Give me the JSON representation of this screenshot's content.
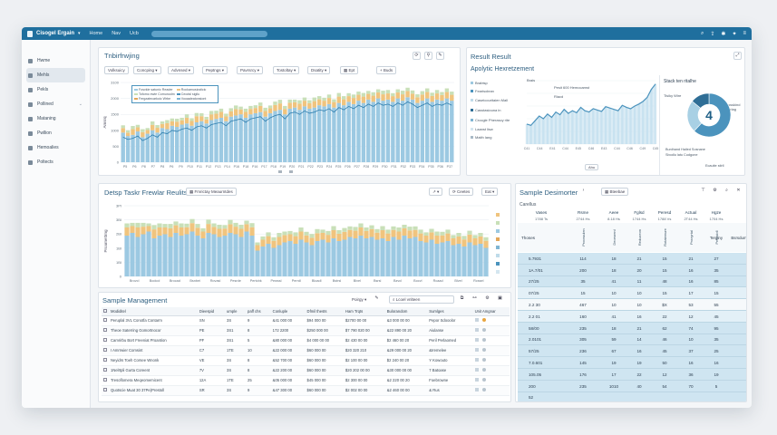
{
  "topbar": {
    "app_title": "Cisogel Ergain",
    "nav": [
      "Home",
      "Nav",
      "Ucb"
    ],
    "right_icons": [
      "search-icon",
      "share-icon",
      "settings-icon",
      "twitter-icon",
      "menu-icon"
    ]
  },
  "sidebar": {
    "items": [
      {
        "label": "Hwme",
        "icon": "home-icon"
      },
      {
        "label": "Mehls",
        "icon": "metrics-icon"
      },
      {
        "label": "Pekls",
        "icon": "pages-icon"
      },
      {
        "label": "Pollined",
        "icon": "pipeline-icon"
      },
      {
        "label": "Mataning",
        "icon": "monitor-icon"
      },
      {
        "label": "Pwllion",
        "icon": "pavilion-icon"
      },
      {
        "label": "Hemoalies",
        "icon": "anomaly-icon"
      },
      {
        "label": "Poltects",
        "icon": "projects-icon"
      }
    ]
  },
  "panel1": {
    "title": "Tnbirfrwjing",
    "toolbar": [
      "Volksuicy",
      "Concping",
      "Advnsed",
      "Peptngs",
      "Pavrsrcy",
      "Tostoltay",
      "Dsatity",
      "Ept",
      "Buds"
    ],
    "legend": [
      "Fosvkle satunic Reader",
      "Rockamusicsticic",
      "Tofomo ewie Comunodm",
      "Ceodsl sigilu",
      "Fergzatecarkoic Wrbe",
      "Vooaaleatonsiont"
    ],
    "ylabel": "Amsrq"
  },
  "panel2": {
    "title": "Result Result",
    "subtitle": "Apolytic Hexretzement",
    "legend": [
      {
        "label": "Brabtsp",
        "color": "#9ec9e0"
      },
      {
        "label": "Fearisolean",
        "color": "#4b93bd"
      },
      {
        "label": "Caseicouritaien Mall",
        "color": "#bfdbe9"
      },
      {
        "label": "Casstasiouna in",
        "color": "#2f6e96"
      },
      {
        "label": "Crocgle Pherascy rite",
        "color": "#7fb5d3"
      },
      {
        "label": "Laanst lisw",
        "color": "#d4e6f0"
      },
      {
        "label": "Maith lang",
        "color": "#a8b9c6"
      }
    ],
    "chart_label_a": "Brais",
    "chart_label_b": "Pesit 600 Hemocamst",
    "chart_label_c": "Riacd",
    "donut_title": "Stack ten ritalhe",
    "donut_value": "4",
    "donut_left": "Tisiky Wire",
    "donut_right": "Cosskind Gerlag",
    "donut_notes": [
      "Bunihand Hailed Sosnane",
      "Sbodlu latu Cudgone",
      "Ecauite stirll"
    ],
    "footer_btn": "Ahu"
  },
  "chart_data": [
    {
      "type": "bar",
      "title": "Tnbirfrwjing",
      "ylabel": "Amsrq",
      "ylim": [
        0,
        3500
      ],
      "yticks": [
        "3100",
        "2000",
        "1500",
        "1000",
        "500",
        "0"
      ],
      "xticks": [
        "P5",
        "P6",
        "P8",
        "P7",
        "P8",
        "P6",
        "P9",
        "P10",
        "P11",
        "P12",
        "P13",
        "P14",
        "P16",
        "P18",
        "P16",
        "P17",
        "P18",
        "P19",
        "P20",
        "P21",
        "P22",
        "P23",
        "P24",
        "P25",
        "P26",
        "P27",
        "P28",
        "P29",
        "P30",
        "P31",
        "P32",
        "P33",
        "P34",
        "P35",
        "P36",
        "P37"
      ],
      "series": [
        {
          "name": "Fosvkle satunic Reader",
          "color": "#9cc9e2",
          "values": [
            1300,
            1150,
            1200,
            1350,
            1100,
            1250,
            1400,
            1300,
            1500,
            1450,
            1600,
            1550,
            1650,
            1700,
            1600,
            1750,
            1800,
            1700,
            1850,
            1900,
            1950,
            1800,
            2000,
            2050,
            2100,
            1950,
            2100,
            2150,
            2200,
            2000,
            2150,
            2250,
            2300,
            2100,
            2350,
            2400,
            2300,
            2450,
            2350,
            2400,
            2500,
            2450,
            2550,
            2400,
            2600,
            2500,
            2650,
            2550,
            2700,
            2600,
            2750,
            2650,
            2800,
            2700,
            2750,
            2650,
            2800,
            2700,
            2850,
            2750,
            2600,
            2700,
            2800,
            2650,
            2750,
            2700,
            2800,
            2700
          ]
        },
        {
          "name": "Rockamusicsticic",
          "color": "#f0c47e",
          "values": [
            200,
            150,
            250,
            180,
            220,
            160,
            240,
            210,
            180,
            260,
            200,
            230,
            190,
            250,
            210,
            270,
            220,
            180,
            250,
            230,
            260,
            210,
            240,
            280,
            220,
            260,
            240,
            230,
            270,
            250,
            220,
            260,
            280,
            240,
            260,
            230,
            270,
            250,
            240,
            280,
            260,
            250,
            270,
            240,
            280,
            260,
            250,
            270,
            260,
            280,
            250,
            270,
            260,
            280,
            270,
            250,
            260,
            280,
            270,
            260,
            250,
            270,
            280,
            260,
            270,
            250,
            280,
            260
          ]
        },
        {
          "name": "Tofomo ewie Comunodm",
          "color": "#c9e0b8",
          "values": [
            120,
            100,
            140,
            110,
            130,
            90,
            150,
            120,
            110,
            140,
            120,
            130,
            110,
            150,
            120,
            140,
            130,
            110,
            150,
            130,
            140,
            120,
            130,
            160,
            120,
            140,
            130,
            120,
            150,
            140,
            120,
            150,
            160,
            130,
            140,
            120,
            150,
            140,
            130,
            160,
            140,
            130,
            150,
            120,
            160,
            140,
            130,
            150,
            140,
            160,
            130,
            150,
            140,
            160,
            150,
            130,
            140,
            160,
            150,
            140,
            130,
            150,
            160,
            140,
            150,
            130,
            160,
            140
          ]
        }
      ],
      "overlay_line": [
        1100,
        1000,
        1050,
        1150,
        950,
        1050,
        1200,
        1100,
        1300,
        1250,
        1400,
        1350,
        1450,
        1500,
        1400,
        1550,
        1600,
        1500,
        1650,
        1700,
        1750,
        1600,
        1800,
        1850,
        1900,
        1750,
        1900,
        1950,
        2000,
        1800,
        1950,
        2050,
        2100,
        1900,
        2150,
        2200,
        2100,
        2250,
        2150,
        2200,
        2300,
        2250,
        2350,
        2200,
        2400,
        2300,
        2450,
        2350,
        2500,
        2400,
        2550,
        2450,
        2600,
        2500,
        2550,
        2450,
        2600,
        2500,
        2650,
        2550,
        2400,
        2500,
        2600,
        2450,
        2550,
        2500,
        2600,
        2500
      ]
    },
    {
      "type": "area",
      "title": "Apolytic Hexretzement",
      "series": [
        {
          "name": "Fearisolean",
          "color": "#4b93bd",
          "values": [
            30,
            28,
            35,
            42,
            38,
            45,
            40,
            48,
            44,
            52,
            46,
            50,
            47,
            55,
            50,
            48,
            53,
            51,
            49,
            56,
            54,
            52,
            50,
            58,
            55,
            53,
            57,
            60,
            64,
            70,
            82,
            90
          ]
        }
      ],
      "xticks": [
        "C41",
        "C44",
        "E41",
        "C44",
        "E45",
        "C46",
        "E43",
        "C44",
        "C46",
        "C49",
        "C45"
      ]
    },
    {
      "type": "pie",
      "title": "Stack ten ritalhe",
      "values": [
        62,
        24,
        14
      ],
      "labels": [
        "Fearisolean",
        "Caseicouritaien Mall",
        "Laanst lisw"
      ],
      "center_value": "4"
    },
    {
      "type": "bar",
      "title": "Detsp Taskr Frewlar Reulits",
      "ylabel": "Proarnettrng",
      "yticks": [
        "3PI",
        "3BI",
        "2BI",
        "1BI",
        "1BI",
        "0"
      ],
      "xticks": [
        "Brovcl",
        "Bodcol",
        "Brocad",
        "Bsnbei",
        "Rovasl",
        "Pesrde",
        "Pertcbk",
        "Pewssl",
        "Perrdl",
        "Bloadl",
        "Bstrsl",
        "Blvel",
        "Bsrsl",
        "Bzvcl",
        "Bocvl",
        "Rcaad",
        "Blvel",
        "Rcssel"
      ],
      "series": [
        {
          "name": "Base",
          "color": "#9cc9e2",
          "values": [
            1500,
            1600,
            1450,
            1550,
            1650,
            1400,
            1500,
            1550,
            1450,
            1600,
            1500,
            1550,
            1650,
            1500,
            1400,
            1600,
            1550,
            1450,
            1500,
            1600,
            1550,
            1450,
            1650,
            1500,
            950,
            1100,
            1200,
            1050,
            1150,
            1250,
            1300,
            1200,
            1350,
            1250,
            1150,
            1300,
            1350,
            1250,
            1400,
            1300,
            1350,
            1450,
            1400,
            1500,
            1400,
            1450,
            1350,
            1400,
            1300,
            1450,
            1350,
            1500,
            1400,
            1450,
            1300,
            1250,
            1350,
            1200,
            1250,
            1300,
            1150,
            1200,
            1100,
            1250,
            1150,
            1200,
            1050
          ]
        },
        {
          "name": "Mid",
          "color": "#f0c47e",
          "values": [
            300,
            250,
            350,
            280,
            200,
            330,
            300,
            250,
            320,
            280,
            300,
            260,
            310,
            290,
            250,
            330,
            270,
            300,
            260,
            320,
            280,
            300,
            270,
            310,
            200,
            250,
            280,
            260,
            300,
            270,
            250,
            280,
            300,
            260,
            270,
            290,
            250,
            280,
            300,
            270,
            290,
            260,
            280,
            300,
            270,
            290,
            260,
            300,
            280,
            260,
            300,
            270,
            290,
            260,
            280,
            250,
            270,
            300,
            260,
            280,
            250,
            270,
            260,
            290,
            250,
            270,
            260
          ]
        },
        {
          "name": "Top",
          "color": "#c9e0b8",
          "values": [
            150,
            120,
            170,
            140,
            100,
            160,
            150,
            130,
            160,
            140,
            150,
            130,
            150,
            140,
            120,
            160,
            130,
            150,
            130,
            160,
            140,
            150,
            130,
            150,
            100,
            120,
            140,
            130,
            150,
            130,
            120,
            140,
            150,
            130,
            140,
            150,
            120,
            140,
            150,
            130,
            140,
            130,
            140,
            150,
            130,
            140,
            130,
            150,
            140,
            130,
            150,
            130,
            140,
            130,
            140,
            120,
            130,
            150,
            130,
            140,
            120,
            130,
            130,
            140,
            120,
            130,
            130
          ]
        }
      ]
    }
  ],
  "panel3": {
    "title": "Detsp Taskr Frewlar Reulits",
    "filter": "Fmrictay Meaurntdes",
    "btn_columns": "Ceetes",
    "btn_export": "Eat",
    "ylabel": "Proarnettrng"
  },
  "panel4": {
    "title": "Sample Management",
    "filter": "Poirgy",
    "search_placeholder": "Lcoel vnlteen",
    "columns": [
      "Modiditel",
      "Dieespid",
      "umple",
      "paff chs",
      "Conluple",
      "Dfmil thests",
      "Ham Trqts",
      "Bulorandom",
      "Sumlges",
      "Unit Amgnar"
    ],
    "rows": [
      [
        "Peruplal 3VL Conotfa Contarm",
        "SN",
        "3S",
        "9",
        "&41 000 00",
        "$94 000 00",
        "$2700 00 00",
        "&3 000 00 00",
        "Pepor Sdooolor",
        ""
      ],
      [
        "Theoe Saterring Gomortnocor",
        "PE",
        "3S1",
        "8",
        "172 2200",
        "$250 000 00",
        "$7 790 020 00",
        "&22 890 00 20",
        "Aiulanse",
        ""
      ],
      [
        "Camrirbu Bort Freeniat Proantion",
        "PF",
        "3S1",
        "5",
        "&80 000 00",
        "$4 000 00 00",
        "$2 430 00 00",
        "$2 460 00 20",
        "Peril Perlaomed",
        ""
      ],
      [
        "I Amrrwier Comsint",
        "C7",
        "1TE",
        "10",
        "&22 000 00",
        "$60 000 00",
        "$20 320 210",
        "&29 000 00 20",
        "&Iremelee",
        ""
      ],
      [
        "Neyidrs Toeh Corsee Wnonk",
        "VE",
        "3S",
        "8",
        "&52 700 00",
        "$60 000 00",
        "$2 100 00 00",
        "$2 240 00 20",
        "Y Kowouto",
        ""
      ],
      [
        "1Nelrtpli Gurta Coreent",
        "7V",
        "3S",
        "8",
        "&22 200 00",
        "$60 000 00",
        "$20 202 00 00",
        "&30 000 00 00",
        "7 Batoase",
        ""
      ],
      [
        "Tresoflomera Meqeomemicent",
        "12A",
        "1TE",
        "25",
        "&05 000 00",
        "$45 000 00",
        "$2 300 00 00",
        "&2 220 00 20",
        "Foebrowne",
        ""
      ],
      [
        "Quotscie Muat 30 37Pe)Prestoll",
        "SR",
        "3S",
        "9",
        "&47 300 00",
        "$60 000 00",
        "$2 002 00 00",
        "&2 460 00 00",
        "& Rus",
        ""
      ]
    ]
  },
  "panel5": {
    "title": "Sample Desimorter",
    "btn": "Bteebae",
    "subtitle": "Carellus",
    "header_row1": [
      "Vases",
      "Rsme",
      "Aeee",
      "Fglsd",
      "Peresd",
      "Actual",
      "Hgze"
    ],
    "header_row2": [
      "1788 Ts",
      "2744 Hs",
      "8.18 Hs",
      "1744 Hs",
      "1788 Vs",
      "2T44 Hs",
      "1704 Hs"
    ],
    "vertical_labels": [
      "Prooruulen",
      "Deorsrenl",
      "Reduceon",
      "Rotateeure",
      "Prooyrtal",
      "Pressioll"
    ],
    "row_label": "Thoses",
    "row_col6": "Terginy",
    "row_col7": "Bsrsdum",
    "rows": [
      [
        "5.7931",
        "114",
        "18",
        "21",
        "15",
        "21",
        "27"
      ],
      [
        "1A.7/01",
        "200",
        "18",
        "20",
        "15",
        "16",
        "35"
      ],
      [
        "27/25",
        "35",
        "41",
        "11",
        "48",
        "16",
        "85"
      ],
      [
        "07/25",
        "15",
        "10",
        "10",
        "15",
        "17",
        "15"
      ],
      [
        "2.2 30",
        "467",
        "10",
        "10",
        "$X",
        "53",
        "55"
      ],
      [
        "2.2 01",
        "160",
        "41",
        "16",
        "22",
        "12",
        "45"
      ],
      [
        "58/00",
        "235",
        "18",
        "21",
        "62",
        "74",
        "95"
      ],
      [
        "2.0101",
        "305",
        "59",
        "14",
        "46",
        "10",
        "35"
      ],
      [
        "57/25",
        "236",
        "67",
        "16",
        "45",
        "37",
        "25"
      ],
      [
        "7.0.601",
        "145",
        "19",
        "19",
        "50",
        "16",
        "16"
      ],
      [
        "105.05",
        "176",
        "17",
        "22",
        "12",
        "36",
        "19"
      ],
      [
        "200",
        "235",
        "1010",
        "40",
        "54",
        "70",
        "5"
      ],
      [
        "52",
        "",
        "",
        "",
        "",
        "",
        ""
      ]
    ]
  }
}
